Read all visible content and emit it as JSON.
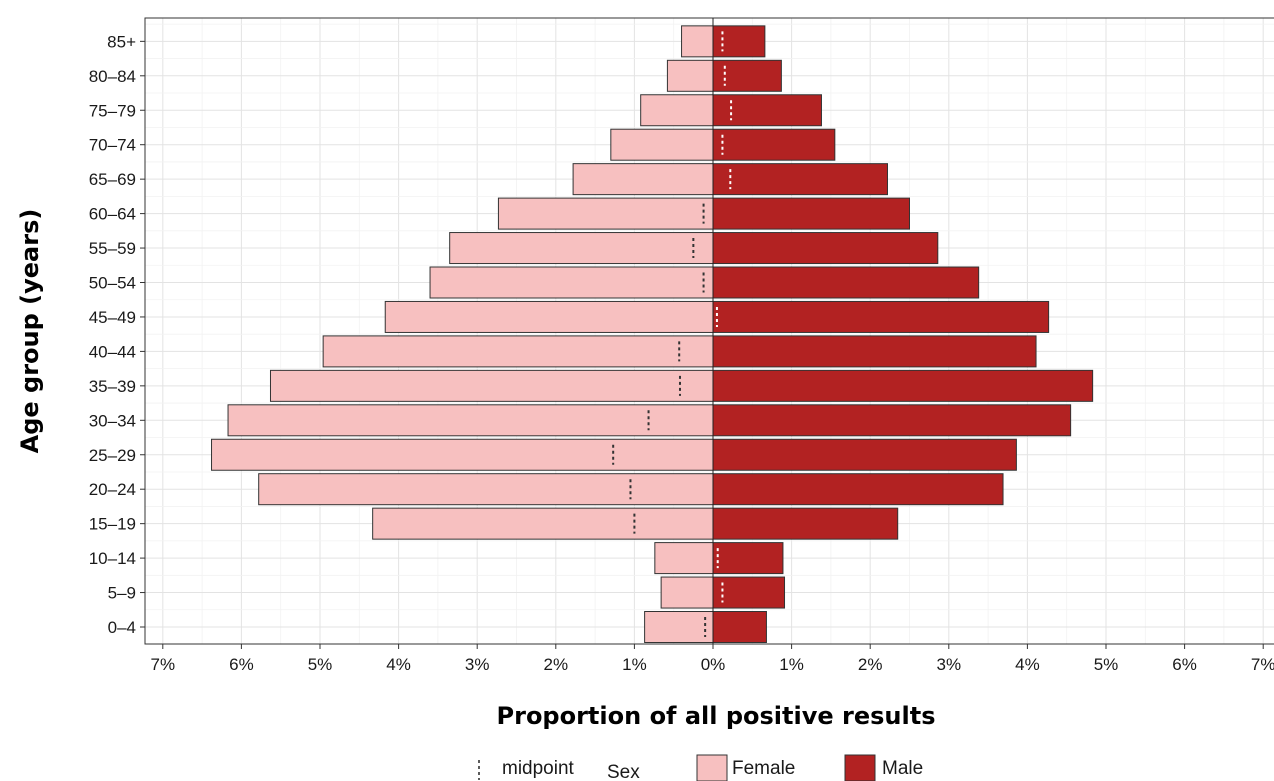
{
  "chart_data": {
    "type": "bar",
    "orientation": "horizontal-pyramid",
    "xlabel": "Proportion of all positive results",
    "ylabel": "Age group (years)",
    "x_ticks": [
      "7%",
      "6%",
      "5%",
      "4%",
      "3%",
      "2%",
      "1%",
      "0%",
      "1%",
      "2%",
      "3%",
      "4%",
      "5%",
      "6%",
      "7%"
    ],
    "xlim": [
      -7,
      7
    ],
    "categories": [
      "0–4",
      "5–9",
      "10–14",
      "15–19",
      "20–24",
      "25–29",
      "30–34",
      "35–39",
      "40–44",
      "45–49",
      "50–54",
      "55–59",
      "60–64",
      "65–69",
      "70–74",
      "75–79",
      "80–84",
      "85+"
    ],
    "series": [
      {
        "name": "Female",
        "side": "left",
        "color": "#f7c0c0",
        "values": [
          0.87,
          0.66,
          0.74,
          4.33,
          5.78,
          6.38,
          6.17,
          5.63,
          4.96,
          4.17,
          3.6,
          3.35,
          2.73,
          1.78,
          1.3,
          0.92,
          0.58,
          0.4
        ]
      },
      {
        "name": "Male",
        "side": "right",
        "color": "#b22222",
        "values": [
          0.68,
          0.91,
          0.89,
          2.35,
          3.69,
          3.86,
          4.55,
          4.83,
          4.11,
          4.27,
          3.38,
          2.86,
          2.5,
          2.22,
          1.55,
          1.38,
          0.87,
          0.66
        ]
      }
    ],
    "midpoint": [
      -0.1,
      0.12,
      0.06,
      -1.0,
      -1.05,
      -1.27,
      -0.82,
      -0.42,
      -0.43,
      0.05,
      -0.12,
      -0.25,
      -0.12,
      0.22,
      0.12,
      0.23,
      0.15,
      0.12
    ],
    "grid": true,
    "legend": {
      "position": "bottom",
      "midpoint_label": "midpoint",
      "sex_title": "Sex",
      "female_label": "Female",
      "male_label": "Male"
    }
  }
}
